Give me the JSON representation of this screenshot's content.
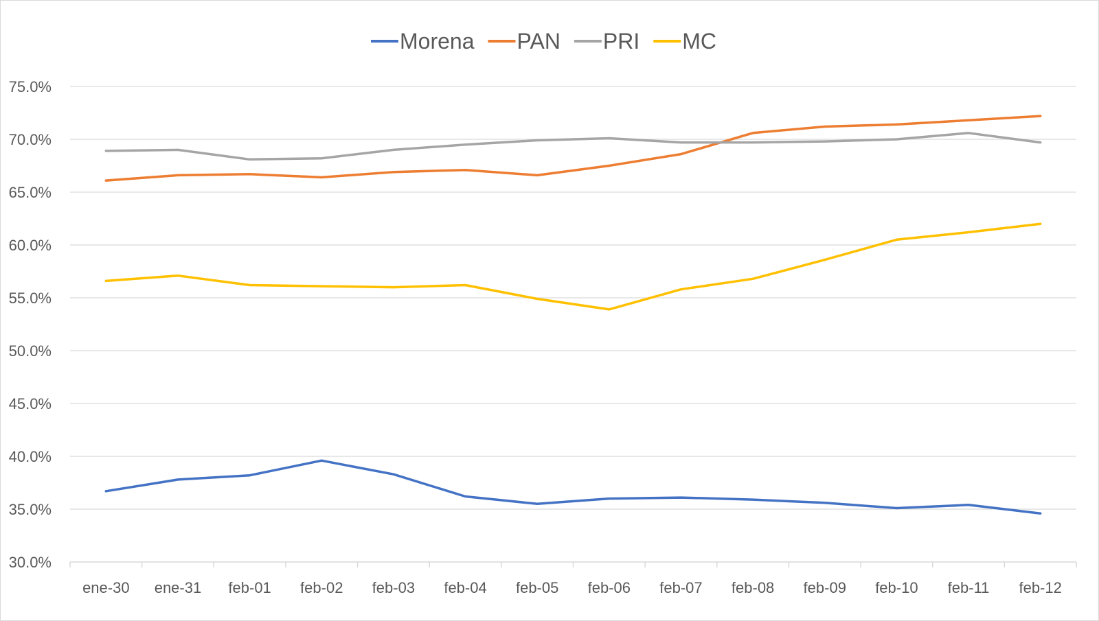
{
  "chart_data": {
    "type": "line",
    "title": "",
    "xlabel": "",
    "ylabel": "",
    "ylim": [
      30,
      75
    ],
    "ytick_step": 5,
    "ytick_labels": [
      "30.0%",
      "35.0%",
      "40.0%",
      "45.0%",
      "50.0%",
      "55.0%",
      "60.0%",
      "65.0%",
      "70.0%",
      "75.0%"
    ],
    "grid": true,
    "legend_position": "top-center",
    "categories": [
      "ene-30",
      "ene-31",
      "feb-01",
      "feb-02",
      "feb-03",
      "feb-04",
      "feb-05",
      "feb-06",
      "feb-07",
      "feb-08",
      "feb-09",
      "feb-10",
      "feb-11",
      "feb-12"
    ],
    "series": [
      {
        "name": "Morena",
        "color": "#4472c4",
        "values": [
          36.7,
          37.8,
          38.2,
          39.6,
          38.3,
          36.2,
          35.5,
          36.0,
          36.1,
          35.9,
          35.6,
          35.1,
          35.4,
          34.6
        ]
      },
      {
        "name": "PAN",
        "color": "#ed7d31",
        "values": [
          66.1,
          66.6,
          66.7,
          66.4,
          66.9,
          67.1,
          66.6,
          67.5,
          68.6,
          70.6,
          71.2,
          71.4,
          71.8,
          72.2
        ]
      },
      {
        "name": "PRI",
        "color": "#a5a5a5",
        "values": [
          68.9,
          69.0,
          68.1,
          68.2,
          69.0,
          69.5,
          69.9,
          70.1,
          69.7,
          69.7,
          69.8,
          70.0,
          70.6,
          69.7
        ]
      },
      {
        "name": "MC",
        "color": "#ffc000",
        "values": [
          56.6,
          57.1,
          56.2,
          56.1,
          56.0,
          56.2,
          54.9,
          53.9,
          55.8,
          56.8,
          58.6,
          60.5,
          61.2,
          62.0
        ]
      }
    ]
  }
}
